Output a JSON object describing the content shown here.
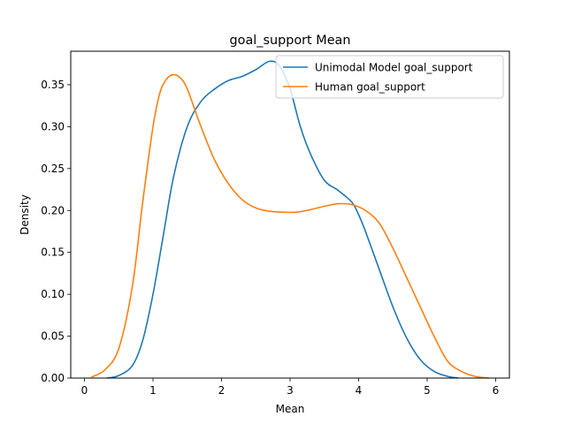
{
  "chart_data": {
    "type": "line",
    "title": "goal_support Mean",
    "xlabel": "Mean",
    "ylabel": "Density",
    "xlim": [
      -0.2,
      6.2
    ],
    "ylim": [
      0,
      0.39
    ],
    "xticks": [
      0,
      1,
      2,
      3,
      4,
      5,
      6
    ],
    "yticks": [
      0.0,
      0.05,
      0.1,
      0.15,
      0.2,
      0.25,
      0.3,
      0.35
    ],
    "ytick_labels": [
      "0.00",
      "0.05",
      "0.10",
      "0.15",
      "0.20",
      "0.25",
      "0.30",
      "0.35"
    ],
    "grid": false,
    "legend_position": "top-right",
    "series": [
      {
        "name": "Unimodal Model goal_support",
        "color": "#1f77b4",
        "x": [
          0.33,
          0.5,
          0.7,
          0.85,
          1.0,
          1.15,
          1.3,
          1.5,
          1.7,
          1.9,
          2.1,
          2.3,
          2.5,
          2.7,
          2.85,
          3.0,
          3.15,
          3.3,
          3.5,
          3.7,
          3.9,
          4.0,
          4.1,
          4.3,
          4.5,
          4.7,
          4.9,
          5.1,
          5.3,
          5.45
        ],
        "y": [
          0.0,
          0.003,
          0.015,
          0.045,
          0.1,
          0.17,
          0.24,
          0.3,
          0.33,
          0.345,
          0.355,
          0.36,
          0.368,
          0.378,
          0.372,
          0.345,
          0.3,
          0.267,
          0.236,
          0.224,
          0.21,
          0.195,
          0.175,
          0.13,
          0.085,
          0.048,
          0.022,
          0.008,
          0.002,
          0.0
        ]
      },
      {
        "name": "Human goal_support",
        "color": "#ff7f0e",
        "x": [
          0.1,
          0.3,
          0.5,
          0.7,
          0.85,
          1.0,
          1.1,
          1.2,
          1.3,
          1.4,
          1.5,
          1.7,
          1.9,
          2.1,
          2.3,
          2.5,
          2.7,
          2.9,
          3.1,
          3.3,
          3.5,
          3.7,
          3.9,
          4.1,
          4.3,
          4.5,
          4.7,
          4.9,
          5.1,
          5.3,
          5.5,
          5.7,
          5.9
        ],
        "y": [
          0.001,
          0.01,
          0.035,
          0.11,
          0.21,
          0.3,
          0.34,
          0.357,
          0.362,
          0.358,
          0.345,
          0.3,
          0.26,
          0.232,
          0.213,
          0.203,
          0.199,
          0.198,
          0.198,
          0.201,
          0.205,
          0.208,
          0.207,
          0.2,
          0.185,
          0.155,
          0.12,
          0.085,
          0.05,
          0.02,
          0.008,
          0.002,
          0.0
        ]
      }
    ]
  }
}
